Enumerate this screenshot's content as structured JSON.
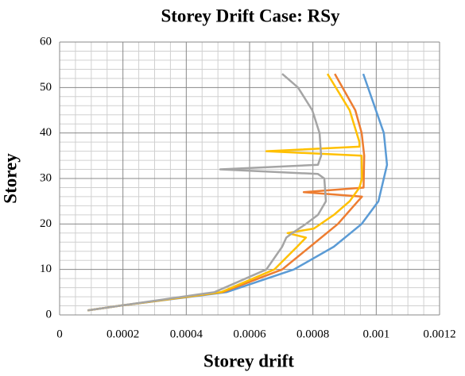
{
  "chart_data": {
    "type": "line",
    "title": "Storey Drift Case: RSy",
    "x_label": "Storey drift",
    "y_label": "Storey",
    "xlim": [
      0,
      0.0012
    ],
    "xticks": [
      0,
      0.0002,
      0.0004,
      0.0006,
      0.0008,
      0.001,
      0.0012
    ],
    "ylim": [
      0,
      60
    ],
    "yticks": [
      0,
      10,
      20,
      30,
      40,
      50,
      60
    ],
    "grid": true,
    "minor_grid": true,
    "series": [
      {
        "color": "#5b9bd5",
        "x": [
          8.8e-05,
          0.000188,
          0.000527,
          0.00074,
          0.000866,
          0.000954,
          0.001007,
          0.001034,
          0.001024,
          0.000959
        ],
        "y": [
          1,
          2,
          5,
          10,
          15,
          20,
          25,
          33,
          40,
          53
        ]
      },
      {
        "color": "#ed7d31",
        "x": [
          8.8e-05,
          0.000188,
          0.000515,
          0.000703,
          0.000791,
          0.000879,
          0.000942,
          0.000955,
          0.000771,
          0.00096,
          0.000962,
          0.000954,
          0.000934,
          0.000869
        ],
        "y": [
          1,
          2,
          5,
          10,
          15,
          20,
          25,
          26,
          27,
          28,
          35,
          40,
          45,
          53
        ]
      },
      {
        "color": "#ffc000",
        "x": [
          8.8e-05,
          0.000188,
          0.00051,
          0.000678,
          0.00075,
          0.000778,
          0.00072,
          0.000803,
          0.000866,
          0.000916,
          0.000947,
          0.000955,
          0.000954,
          0.000653,
          0.000947,
          0.000947,
          0.000916,
          0.000846
        ],
        "y": [
          1,
          2,
          5,
          10,
          15,
          17,
          18,
          19,
          22,
          25,
          28,
          30,
          35,
          36,
          37,
          38,
          45,
          53
        ]
      },
      {
        "color": "#a5a5a5",
        "x": [
          8.8e-05,
          0.000188,
          0.000489,
          0.000653,
          0.000703,
          0.000716,
          0.000735,
          0.000778,
          0.000816,
          0.000841,
          0.000836,
          0.000816,
          0.000507,
          0.000816,
          0.000826,
          0.000821,
          0.000798,
          0.000753,
          0.000703
        ],
        "y": [
          1,
          2,
          5,
          10,
          15,
          17,
          18,
          20,
          22,
          25,
          30,
          31,
          32,
          33,
          35,
          40,
          45,
          50,
          53
        ]
      }
    ]
  }
}
